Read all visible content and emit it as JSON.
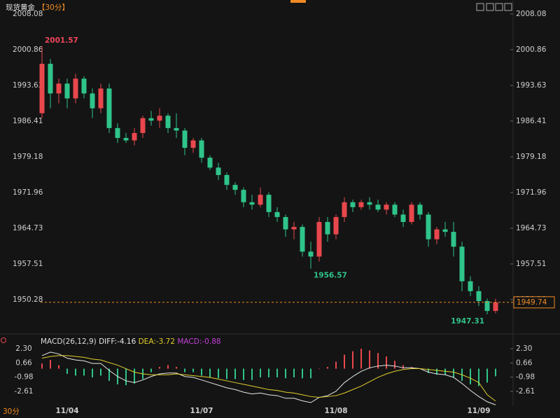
{
  "chart_data": {
    "type": "candlestick",
    "title": "现货黄金",
    "interval": "【30分】",
    "period_tab": "30分",
    "up_color": "#e8474d",
    "down_color": "#2fc48a",
    "categories": [
      null,
      null,
      null,
      "11/04",
      null,
      null,
      null,
      null,
      null,
      null,
      null,
      null,
      null,
      null,
      null,
      null,
      null,
      null,
      null,
      "11/07",
      null,
      null,
      null,
      null,
      null,
      null,
      null,
      null,
      null,
      null,
      null,
      null,
      null,
      null,
      null,
      "11/08",
      null,
      null,
      null,
      null,
      null,
      null,
      null,
      null,
      null,
      null,
      null,
      null,
      null,
      null,
      null,
      null,
      "11/09",
      null,
      null
    ],
    "open": [
      1988,
      1998,
      1992,
      1994,
      1991,
      1995,
      1992,
      1989,
      1993,
      1985,
      1983,
      1982.5,
      1984,
      1987,
      1986.5,
      1987.5,
      1985,
      1984.5,
      1981,
      1982.5,
      1979,
      1977,
      1975.5,
      1973.5,
      1972.5,
      1970,
      1969.5,
      1971.5,
      1968,
      1967,
      1964.5,
      1965,
      1960,
      1959,
      1966,
      1963.5,
      1967,
      1970,
      1969,
      1970,
      1969.5,
      1968.5,
      1969.5,
      1967.5,
      1966,
      1969.5,
      1967.5,
      1962.5,
      1964.5,
      1964,
      1961,
      1954,
      1952,
      1950,
      1948
    ],
    "high": [
      2001.57,
      1999,
      1995,
      1995,
      1996,
      1995.5,
      1993,
      1994,
      1994,
      1986,
      1984,
      1985,
      1987.5,
      1988.5,
      1989,
      1988,
      1988,
      1985,
      1983,
      1983,
      1979.5,
      1978,
      1976,
      1974,
      1973,
      1971.5,
      1973,
      1972,
      1969,
      1967.5,
      1966,
      1965.5,
      1962,
      1967,
      1967,
      1967.5,
      1971,
      1970.5,
      1970.5,
      1971,
      1970.5,
      1970,
      1970,
      1968.5,
      1970,
      1970,
      1968,
      1965,
      1966,
      1966,
      1962,
      1955,
      1953,
      1950.5,
      1950.5
    ],
    "low": [
      1987,
      1989,
      1990,
      1989,
      1990,
      1991,
      1987,
      1988,
      1984,
      1982,
      1982,
      1981.5,
      1983,
      1985.5,
      1985,
      1984,
      1983,
      1979.5,
      1980,
      1978,
      1976.5,
      1974.5,
      1972.5,
      1971.5,
      1969,
      1968.5,
      1969,
      1967,
      1966,
      1963,
      1962.5,
      1959,
      1956.57,
      1958,
      1962,
      1962.5,
      1966,
      1968,
      1968.5,
      1968.5,
      1968,
      1967.5,
      1967,
      1965,
      1965.5,
      1966.5,
      1961,
      1961.5,
      1963,
      1959,
      1952,
      1951,
      1949,
      1947.31,
      1947.5
    ],
    "close": [
      1998,
      1992,
      1994,
      1991,
      1995,
      1992,
      1989,
      1993,
      1985,
      1983,
      1982.5,
      1984,
      1987,
      1986.5,
      1987.5,
      1985,
      1984.5,
      1981,
      1982.5,
      1979,
      1977,
      1975.5,
      1973.5,
      1972.5,
      1970,
      1969.5,
      1971.5,
      1968,
      1967,
      1964.5,
      1965,
      1960,
      1959,
      1966,
      1963.5,
      1967,
      1970,
      1969,
      1970,
      1969.5,
      1968.5,
      1969.5,
      1967.5,
      1966,
      1969.5,
      1967.5,
      1962.5,
      1964.5,
      1964,
      1961,
      1954,
      1952,
      1950,
      1948,
      1949.74
    ],
    "ylim": [
      1944.33,
      2009.21
    ],
    "yticks": [
      2008.08,
      2000.86,
      1993.63,
      1986.41,
      1979.18,
      1971.96,
      1964.73,
      1957.51,
      1950.28
    ],
    "macd": {
      "name": "MACD(26,12,9)",
      "diff_label": "DIFF:",
      "dea_label": "DEA:",
      "macd_label": "MACD:",
      "diff_color": "#e6e6e6",
      "dea_color": "#e2cf2e",
      "macd_color": "#c23fd6",
      "diff": [
        1.5,
        1.9,
        1.7,
        1.2,
        1.0,
        0.9,
        0.6,
        0.6,
        -0.2,
        -0.9,
        -1.4,
        -1.6,
        -1.3,
        -0.9,
        -0.6,
        -0.5,
        -0.5,
        -0.9,
        -1.0,
        -1.3,
        -1.6,
        -1.9,
        -2.2,
        -2.4,
        -2.7,
        -2.9,
        -2.8,
        -3.0,
        -3.1,
        -3.4,
        -3.4,
        -3.7,
        -3.9,
        -3.3,
        -3.1,
        -2.6,
        -1.6,
        -0.9,
        -0.3,
        0.1,
        0.3,
        0.4,
        0.3,
        0.1,
        0.1,
        0.0,
        -0.4,
        -0.6,
        -0.7,
        -1.0,
        -1.7,
        -2.5,
        -3.2,
        -3.8,
        -4.16
      ],
      "dea": [
        1.2,
        1.4,
        1.5,
        1.5,
        1.4,
        1.3,
        1.1,
        1.0,
        0.7,
        0.4,
        0.0,
        -0.4,
        -0.6,
        -0.7,
        -0.7,
        -0.7,
        -0.6,
        -0.7,
        -0.8,
        -0.9,
        -1.0,
        -1.2,
        -1.4,
        -1.6,
        -1.8,
        -2.0,
        -2.2,
        -2.4,
        -2.5,
        -2.7,
        -2.8,
        -3.0,
        -3.2,
        -3.3,
        -3.2,
        -3.1,
        -2.8,
        -2.4,
        -2.0,
        -1.5,
        -1.0,
        -0.6,
        -0.3,
        -0.1,
        0.0,
        0.0,
        -0.1,
        -0.2,
        -0.3,
        -0.4,
        -0.7,
        -1.1,
        -1.6,
        -3.0,
        -3.72
      ],
      "histogram": [
        0.6,
        1.0,
        0.4,
        -0.6,
        -0.8,
        -0.8,
        -1.0,
        -0.8,
        -1.4,
        -1.8,
        -1.9,
        -1.7,
        -1.2,
        -0.4,
        0.2,
        0.4,
        0.2,
        -0.4,
        -0.4,
        -0.8,
        -1.0,
        -1.1,
        -1.2,
        -1.2,
        -1.3,
        -1.3,
        -1.0,
        -1.0,
        -1.0,
        -1.1,
        -1.0,
        -1.1,
        -1.1,
        0.0,
        0.2,
        0.8,
        1.6,
        2.0,
        2.3,
        2.1,
        1.8,
        1.4,
        0.9,
        0.4,
        0.2,
        0.0,
        -0.5,
        -0.7,
        -0.7,
        -1.0,
        -1.4,
        -1.8,
        -2.0,
        -1.6,
        -0.88
      ],
      "ylim": [
        -4.06,
        2.78
      ],
      "yticks": [
        {
          "value": 2.3,
          "label": "2.30"
        },
        0.66,
        -0.98,
        -2.61
      ]
    }
  }
}
